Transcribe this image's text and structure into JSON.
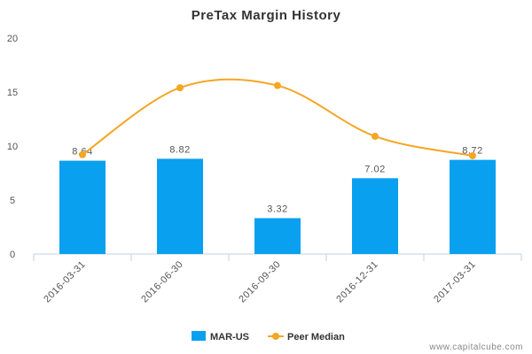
{
  "chart_data": {
    "type": "bar",
    "title": "PreTax Margin History",
    "categories": [
      "2016-03-31",
      "2016-06-30",
      "2016-09-30",
      "2016-12-31",
      "2017-03-31"
    ],
    "series": [
      {
        "name": "MAR-US",
        "type": "bar",
        "color": "#0aa0f0",
        "values": [
          8.64,
          8.82,
          3.32,
          7.02,
          8.72
        ]
      },
      {
        "name": "Peer Median",
        "type": "line",
        "color": "#f5a623",
        "values": [
          9.2,
          15.4,
          15.6,
          10.9,
          9.1
        ]
      }
    ],
    "data_labels": [
      "8.64",
      "8.82",
      "3.32",
      "7.02",
      "8.72"
    ],
    "yticks": [
      "0",
      "5",
      "10",
      "15",
      "20"
    ],
    "ylim": [
      0,
      20
    ],
    "grid": false,
    "legend_position": "bottom-center"
  },
  "watermark": "www.capitalcube.com"
}
